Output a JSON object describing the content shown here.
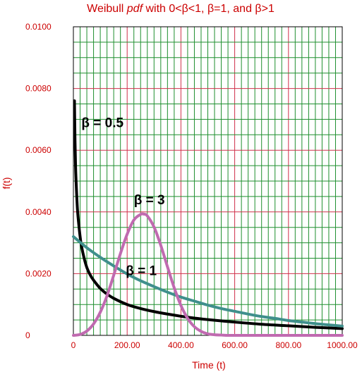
{
  "chart_data": {
    "type": "line",
    "title": "Weibull pdf with 0<β<1, β=1, and β>1",
    "title_parts": {
      "prefix": "Weibull ",
      "italic": "pdf",
      "suffix": " with 0<β<1, β=1, and β>1"
    },
    "xlabel": "Time (t)",
    "ylabel": "f(t)",
    "xlim": [
      0,
      1000
    ],
    "ylim": [
      0,
      0.01
    ],
    "x_ticks": [
      0,
      200,
      400,
      600,
      800,
      1000
    ],
    "x_tick_labels": [
      "0",
      "200.00",
      "400.00",
      "600.00",
      "800.00",
      "1000.00"
    ],
    "y_ticks": [
      0,
      0.002,
      0.004,
      0.006,
      0.008,
      0.01
    ],
    "y_tick_labels": [
      "0",
      "0.0020",
      "0.0040",
      "0.0060",
      "0.0080",
      "0.0100"
    ],
    "grid": true,
    "series": [
      {
        "color": "#000000",
        "x": [
          4,
          6,
          8,
          10,
          15,
          20,
          25,
          30,
          40,
          50,
          60,
          70,
          80,
          100,
          120,
          150,
          200,
          250,
          300,
          350,
          400,
          450,
          500,
          600,
          700,
          800,
          900,
          1000
        ],
        "y": [
          0.0076,
          0.0063,
          0.0055,
          0.005,
          0.0041,
          0.0036,
          0.0032,
          0.0029,
          0.0025,
          0.0022,
          0.002,
          0.00185,
          0.00173,
          0.00152,
          0.00137,
          0.0012,
          0.001,
          0.00087,
          0.00077,
          0.00069,
          0.00062,
          0.00056,
          0.00051,
          0.00043,
          0.00036,
          0.00031,
          0.00026,
          0.00022
        ]
      },
      {
        "color": "#3f8f8c",
        "x": [
          0,
          50,
          100,
          150,
          200,
          250,
          300,
          350,
          400,
          450,
          500,
          550,
          600,
          650,
          700,
          750,
          800,
          850,
          900,
          950,
          1000
        ],
        "y": [
          0.0032,
          0.00284,
          0.00253,
          0.00225,
          0.00199,
          0.00177,
          0.00158,
          0.0014,
          0.00124,
          0.00111,
          0.00098,
          0.00087,
          0.00078,
          0.00069,
          0.00061,
          0.00055,
          0.00048,
          0.00043,
          0.00038,
          0.00034,
          0.0003
        ]
      },
      {
        "color": "#c06ab0",
        "x": [
          0,
          25,
          50,
          75,
          100,
          125,
          150,
          175,
          200,
          225,
          250,
          262,
          275,
          300,
          325,
          350,
          375,
          400,
          425,
          450,
          475,
          500,
          525,
          550,
          575,
          600,
          650,
          700,
          800,
          1000
        ],
        "y": [
          0,
          3e-05,
          0.00014,
          0.00037,
          0.00075,
          0.00128,
          0.00195,
          0.00265,
          0.00328,
          0.00374,
          0.00392,
          0.00393,
          0.00387,
          0.00351,
          0.00292,
          0.00222,
          0.00154,
          0.00097,
          0.00055,
          0.00028,
          0.00013,
          5e-05,
          2e-05,
          1e-05,
          0,
          0,
          0,
          0,
          0,
          0
        ]
      }
    ],
    "annotations": [
      {
        "text": "β = 0.5",
        "x": 30,
        "y": 0.00675
      },
      {
        "text": "β = 3",
        "x": 225,
        "y": 0.00425
      },
      {
        "text": "β = 1",
        "x": 195,
        "y": 0.00195
      }
    ],
    "colors": {
      "axis_text": "#cc0000",
      "title": "#cc0000",
      "grid_minor": "#1f8f2f",
      "grid_major": "#d0304a",
      "frame": "#000000"
    }
  }
}
